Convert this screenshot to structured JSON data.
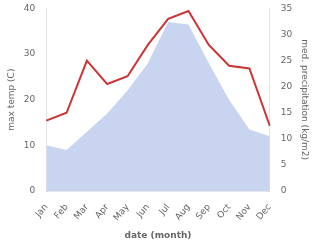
{
  "chart_data": {
    "type": "line",
    "xlabel": "date (month)",
    "ylabel": "max temp (C)",
    "y2label": "med. precipitation (kg/m2)",
    "categories": [
      "Jan",
      "Feb",
      "Mar",
      "Apr",
      "May",
      "Jun",
      "Jul",
      "Aug",
      "Sep",
      "Oct",
      "Nov",
      "Dec"
    ],
    "series": [
      {
        "type": "area",
        "color": "#c8d4f0",
        "values": [
          10.0,
          9.0,
          13.0,
          17.0,
          22.0,
          28.0,
          37.0,
          36.5,
          28.0,
          20.0,
          13.5,
          12.0
        ]
      },
      {
        "type": "line",
        "color": "#cc3333",
        "axis": "y2",
        "values": [
          13.5,
          15.0,
          25.0,
          20.5,
          22.0,
          28.0,
          33.0,
          34.5,
          28.0,
          24.0,
          23.5,
          12.5
        ]
      }
    ],
    "ylim": [
      0,
      40
    ],
    "yticks": [
      0,
      10,
      20,
      30,
      40
    ],
    "y2lim": [
      0,
      35
    ],
    "y2ticks": [
      0,
      5,
      10,
      15,
      20,
      25,
      30,
      35
    ],
    "grid": false
  }
}
